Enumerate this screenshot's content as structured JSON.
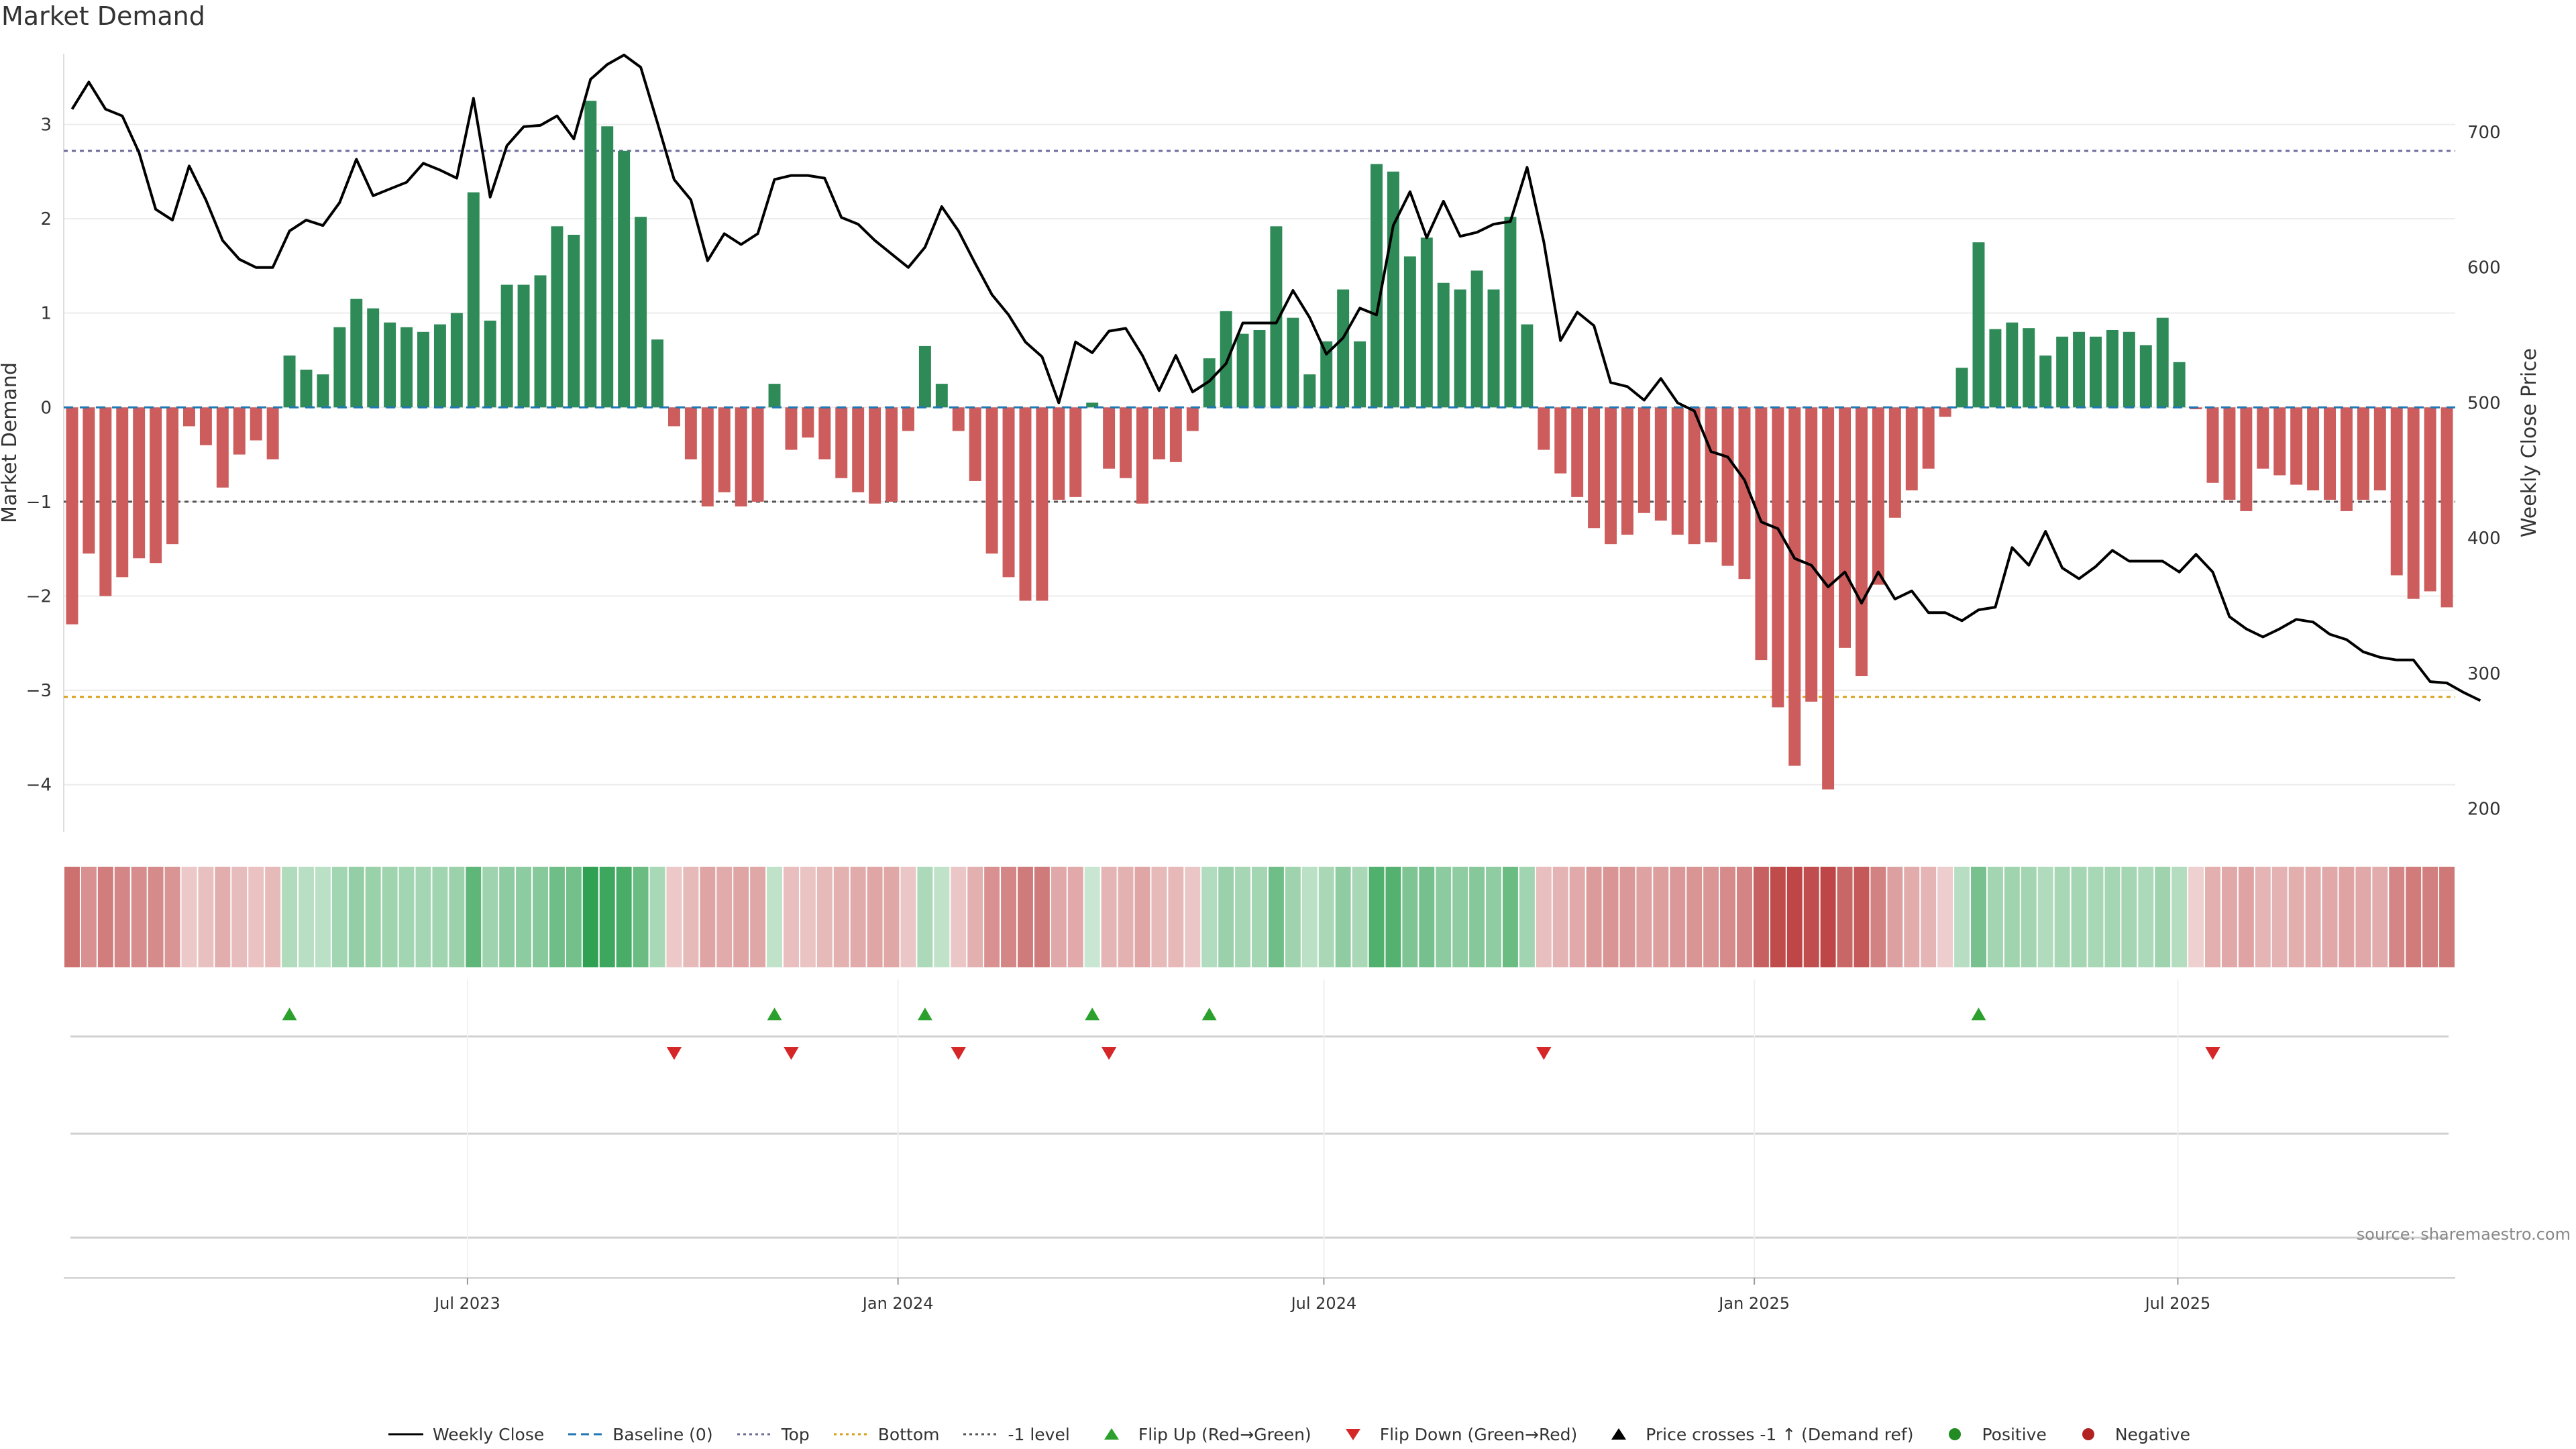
{
  "title": "Market Demand",
  "source": "source: sharemaestro.com",
  "chart_data": {
    "type": "bar",
    "title": "Market Demand",
    "ylabel_left": "Market Demand",
    "ylabel_right": "Weekly Close Price",
    "ylim_left": [
      -4.5,
      3.75
    ],
    "ylim_right": [
      183,
      758
    ],
    "yticks_left": [
      "3",
      "2",
      "1",
      "0",
      "−1",
      "−2",
      "−3",
      "−4"
    ],
    "yticks_left_values": [
      3,
      2,
      1,
      0,
      -1,
      -2,
      -3,
      -4
    ],
    "yticks_right": [
      "700",
      "600",
      "500",
      "400",
      "300",
      "200"
    ],
    "yticks_right_values": [
      700,
      600,
      500,
      400,
      300,
      200
    ],
    "x_start": "2023-01-13",
    "x_end": "2025-10-24",
    "x_tick_labels": [
      "Jul 2023",
      "Jan 2024",
      "Jul 2024",
      "Jan 2025",
      "Jul 2025"
    ],
    "x_tick_dates": [
      "2023-07-01",
      "2024-01-01",
      "2024-07-01",
      "2025-01-01",
      "2025-07-01"
    ],
    "reference_lines": [
      {
        "name": "Top",
        "value": 2.72,
        "color": "#6b6b9b"
      },
      {
        "name": "Bottom",
        "value": -3.07,
        "color": "#d4a017"
      },
      {
        "name": "-1 level",
        "value": -1.0,
        "color": "#555555"
      }
    ],
    "series": [
      {
        "name": "Market Demand",
        "kind": "bar",
        "values": [
          -2.3,
          -1.55,
          -2.0,
          -1.8,
          -1.6,
          -1.65,
          -1.45,
          -0.2,
          -0.4,
          -0.85,
          -0.5,
          -0.35,
          -0.55,
          0.55,
          0.4,
          0.35,
          0.85,
          1.15,
          1.05,
          0.9,
          0.85,
          0.8,
          0.88,
          1.0,
          2.28,
          0.92,
          1.3,
          1.3,
          1.4,
          1.92,
          1.83,
          3.25,
          2.98,
          2.72,
          2.02,
          0.72,
          -0.2,
          -0.55,
          -1.05,
          -0.9,
          -1.05,
          -1.0,
          0.25,
          -0.45,
          -0.32,
          -0.55,
          -0.75,
          -0.9,
          -1.02,
          -1.0,
          -0.25,
          0.65,
          0.25,
          -0.25,
          -0.78,
          -1.55,
          -1.8,
          -2.05,
          -2.05,
          -0.98,
          -0.95,
          0.05,
          -0.65,
          -0.75,
          -1.02,
          -0.55,
          -0.58,
          -0.25,
          0.52,
          1.02,
          0.78,
          0.82,
          1.92,
          0.95,
          0.35,
          0.7,
          1.25,
          0.7,
          2.58,
          2.5,
          1.6,
          1.8,
          1.32,
          1.25,
          1.45,
          1.25,
          2.02,
          0.88,
          -0.45,
          -0.7,
          -0.95,
          -1.28,
          -1.45,
          -1.35,
          -1.12,
          -1.2,
          -1.35,
          -1.45,
          -1.43,
          -1.68,
          -1.82,
          -2.68,
          -3.18,
          -3.8,
          -3.12,
          -4.05,
          -2.55,
          -2.85,
          -1.88,
          -1.17,
          -0.88,
          -0.65,
          -0.1,
          0.42,
          1.75,
          0.83,
          0.9,
          0.84,
          0.55,
          0.75,
          0.8,
          0.75,
          0.82,
          0.8,
          0.66,
          0.95,
          0.48,
          -0.02,
          -0.8,
          -0.98,
          -1.1,
          -0.65,
          -0.72,
          -0.82,
          -0.88,
          -0.98,
          -1.1,
          -0.98,
          -0.88,
          -1.78,
          -2.03,
          -1.95,
          -2.12
        ]
      },
      {
        "name": "Weekly Close",
        "kind": "line",
        "axis": "right",
        "values": [
          717,
          737,
          717,
          712,
          685,
          643,
          635,
          675,
          650,
          620,
          606,
          600,
          600,
          627,
          635,
          631,
          648,
          680,
          653,
          658,
          663,
          677,
          672,
          666,
          725,
          652,
          690,
          704,
          705,
          712,
          695,
          739,
          750,
          757,
          748,
          707,
          665,
          650,
          605,
          625,
          617,
          625,
          665,
          668,
          668,
          666,
          637,
          632,
          620,
          610,
          600,
          615,
          645,
          627,
          603,
          580,
          565,
          545,
          534,
          500,
          545,
          537,
          553,
          555,
          535,
          509,
          535,
          508,
          516,
          529,
          559,
          559,
          559,
          583,
          563,
          536,
          548,
          570,
          565,
          631,
          656,
          622,
          649,
          623,
          626,
          632,
          634,
          674,
          619,
          546,
          567,
          557,
          515,
          512,
          502,
          518,
          500,
          494,
          464,
          460,
          443,
          412,
          407,
          385,
          380,
          364,
          375,
          352,
          375,
          355,
          361,
          345,
          345,
          339,
          347,
          349,
          393,
          380,
          405,
          378,
          370,
          379,
          391,
          383,
          383,
          383,
          375,
          388,
          375,
          342,
          333,
          327,
          333,
          340,
          338,
          329,
          325,
          316,
          312,
          310,
          310,
          294,
          293,
          286,
          280
        ]
      }
    ],
    "flip_up_indices": [
      13,
      42,
      51,
      61,
      68,
      114
    ],
    "flip_down_indices": [
      36,
      43,
      53,
      62,
      88,
      128
    ],
    "legend": [
      "Weekly Close",
      "Baseline (0)",
      "Top",
      "Bottom",
      "-1 level",
      "Flip Up (Red→Green)",
      "Flip Down (Green→Red)",
      "Price crosses -1 ↑ (Demand ref)",
      "Positive",
      "Negative"
    ],
    "legend_placement": "bottom-center",
    "colors": {
      "positive": "#2e8b57",
      "negative": "#cd5c5c",
      "price_line": "#000000",
      "flip_up": "#2ca02c",
      "flip_down": "#d62728",
      "top_line": "#6b6b9b",
      "bottom_line": "#d4a017",
      "minus_one_line": "#555555",
      "baseline": "#1f77b4",
      "positive_dot": "#228b22",
      "negative_dot": "#b22222"
    }
  }
}
